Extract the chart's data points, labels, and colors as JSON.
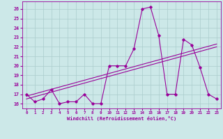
{
  "xlabel": "Windchill (Refroidissement éolien,°C)",
  "background_color": "#cce8e8",
  "line_color": "#990099",
  "grid_color": "#aacccc",
  "xlim": [
    -0.5,
    23.5
  ],
  "ylim": [
    15.5,
    26.8
  ],
  "yticks": [
    16,
    17,
    18,
    19,
    20,
    21,
    22,
    23,
    24,
    25,
    26
  ],
  "xticks": [
    0,
    1,
    2,
    3,
    4,
    5,
    6,
    7,
    8,
    9,
    10,
    11,
    12,
    13,
    14,
    15,
    16,
    17,
    18,
    19,
    20,
    21,
    22,
    23
  ],
  "main_series": [
    [
      0,
      17.0
    ],
    [
      1,
      16.2
    ],
    [
      2,
      16.5
    ],
    [
      3,
      17.5
    ],
    [
      4,
      16.0
    ],
    [
      5,
      16.2
    ],
    [
      6,
      16.2
    ],
    [
      7,
      17.0
    ],
    [
      8,
      16.0
    ],
    [
      9,
      16.0
    ],
    [
      10,
      20.0
    ],
    [
      11,
      20.0
    ],
    [
      12,
      20.0
    ],
    [
      13,
      21.8
    ],
    [
      14,
      26.0
    ],
    [
      15,
      26.2
    ],
    [
      16,
      23.2
    ],
    [
      17,
      17.0
    ],
    [
      18,
      17.0
    ],
    [
      19,
      22.8
    ],
    [
      20,
      22.2
    ],
    [
      21,
      19.8
    ],
    [
      22,
      17.0
    ],
    [
      23,
      16.5
    ]
  ],
  "trend_line1": [
    [
      0,
      16.5
    ],
    [
      23,
      22.0
    ]
  ],
  "trend_line2": [
    [
      0,
      16.8
    ],
    [
      23,
      22.3
    ]
  ]
}
